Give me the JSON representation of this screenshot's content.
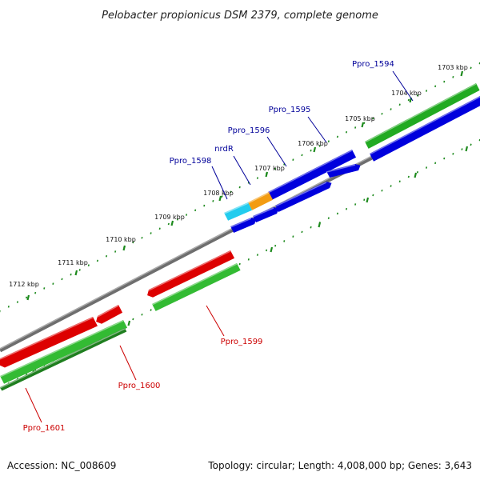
{
  "title": "Pelobacter propionicus DSM 2379, complete genome",
  "footer": {
    "accession": "Accession: NC_008609",
    "info": "Topology: circular; Length: 4,008,000 bp; Genes: 3,643"
  },
  "colors": {
    "backbone": "#888888",
    "forward_cds": "#0000dd",
    "forward_gene": "#22aa22",
    "reverse_cds": "#dd0000",
    "reverse_gene": "#33bb33",
    "nrdR_cds": "#f39c12",
    "ppro1598_cds": "#22ccee",
    "ticks": "#1d8a1d",
    "label_forward": "#000099",
    "label_reverse": "#cc0000"
  },
  "ticks": [
    {
      "label": "1703 kbp"
    },
    {
      "label": "1704 kbp"
    },
    {
      "label": "1705 kbp"
    },
    {
      "label": "1706 kbp"
    },
    {
      "label": "1707 kbp"
    },
    {
      "label": "1708 kbp"
    },
    {
      "label": "1709 kbp"
    },
    {
      "label": "1710 kbp"
    },
    {
      "label": "1711 kbp"
    },
    {
      "label": "1712 kbp"
    }
  ],
  "genes_forward": [
    {
      "name": "Ppro_1594"
    },
    {
      "name": "Ppro_1595"
    },
    {
      "name": "Ppro_1596"
    },
    {
      "name": "nrdR"
    },
    {
      "name": "Ppro_1598"
    }
  ],
  "genes_reverse": [
    {
      "name": "Ppro_1599"
    },
    {
      "name": "Ppro_1600"
    },
    {
      "name": "Ppro_1601"
    }
  ]
}
